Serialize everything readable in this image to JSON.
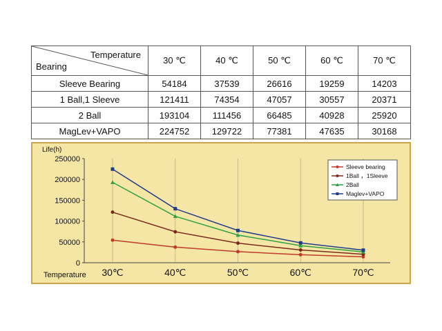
{
  "table": {
    "corner_top": "Temperature",
    "corner_bottom": "Bearing",
    "columns": [
      "30 ℃",
      "40 ℃",
      "50 ℃",
      "60 ℃",
      "70 ℃"
    ],
    "rows": [
      {
        "label": "Sleeve Bearing",
        "values": [
          "54184",
          "37539",
          "26616",
          "19259",
          "14203"
        ]
      },
      {
        "label": "1 Ball,1 Sleeve",
        "values": [
          "121411",
          "74354",
          "47057",
          "30557",
          "20371"
        ]
      },
      {
        "label": "2 Ball",
        "values": [
          "193104",
          "111456",
          "66485",
          "40928",
          "25920"
        ]
      },
      {
        "label": "MagLev+VAPO",
        "values": [
          "224752",
          "129722",
          "77381",
          "47635",
          "30168"
        ]
      }
    ]
  },
  "chart_data": {
    "type": "line",
    "ylabel": "Life(h)",
    "xlabel": "Temperature",
    "categories": [
      "30℃",
      "40℃",
      "50℃",
      "60℃",
      "70℃"
    ],
    "ylim": [
      0,
      250000
    ],
    "yticks": [
      "0",
      "50000",
      "100000",
      "150000",
      "200000",
      "250000"
    ],
    "grid": "vertical",
    "legend_position": "top-right",
    "series": [
      {
        "name": "Sleeve bearing",
        "color": "#c0392b",
        "marker": "circle",
        "values": [
          54184,
          37539,
          26616,
          19259,
          14203
        ]
      },
      {
        "name": "1Ball ，1Sleeve",
        "color": "#7b2a1c",
        "marker": "circle",
        "values": [
          121411,
          74354,
          47057,
          30557,
          20371
        ]
      },
      {
        "name": "2Ball",
        "color": "#2ea043",
        "marker": "triangle",
        "values": [
          193104,
          111456,
          66485,
          40928,
          25920
        ]
      },
      {
        "name": "Maglev+VAPO",
        "color": "#1f3c88",
        "marker": "square",
        "values": [
          224752,
          129722,
          77381,
          47635,
          30168
        ]
      }
    ],
    "colors": {
      "background": "#f5e6a6",
      "frame": "#c9a54a",
      "grid": "#c8b98a"
    }
  }
}
